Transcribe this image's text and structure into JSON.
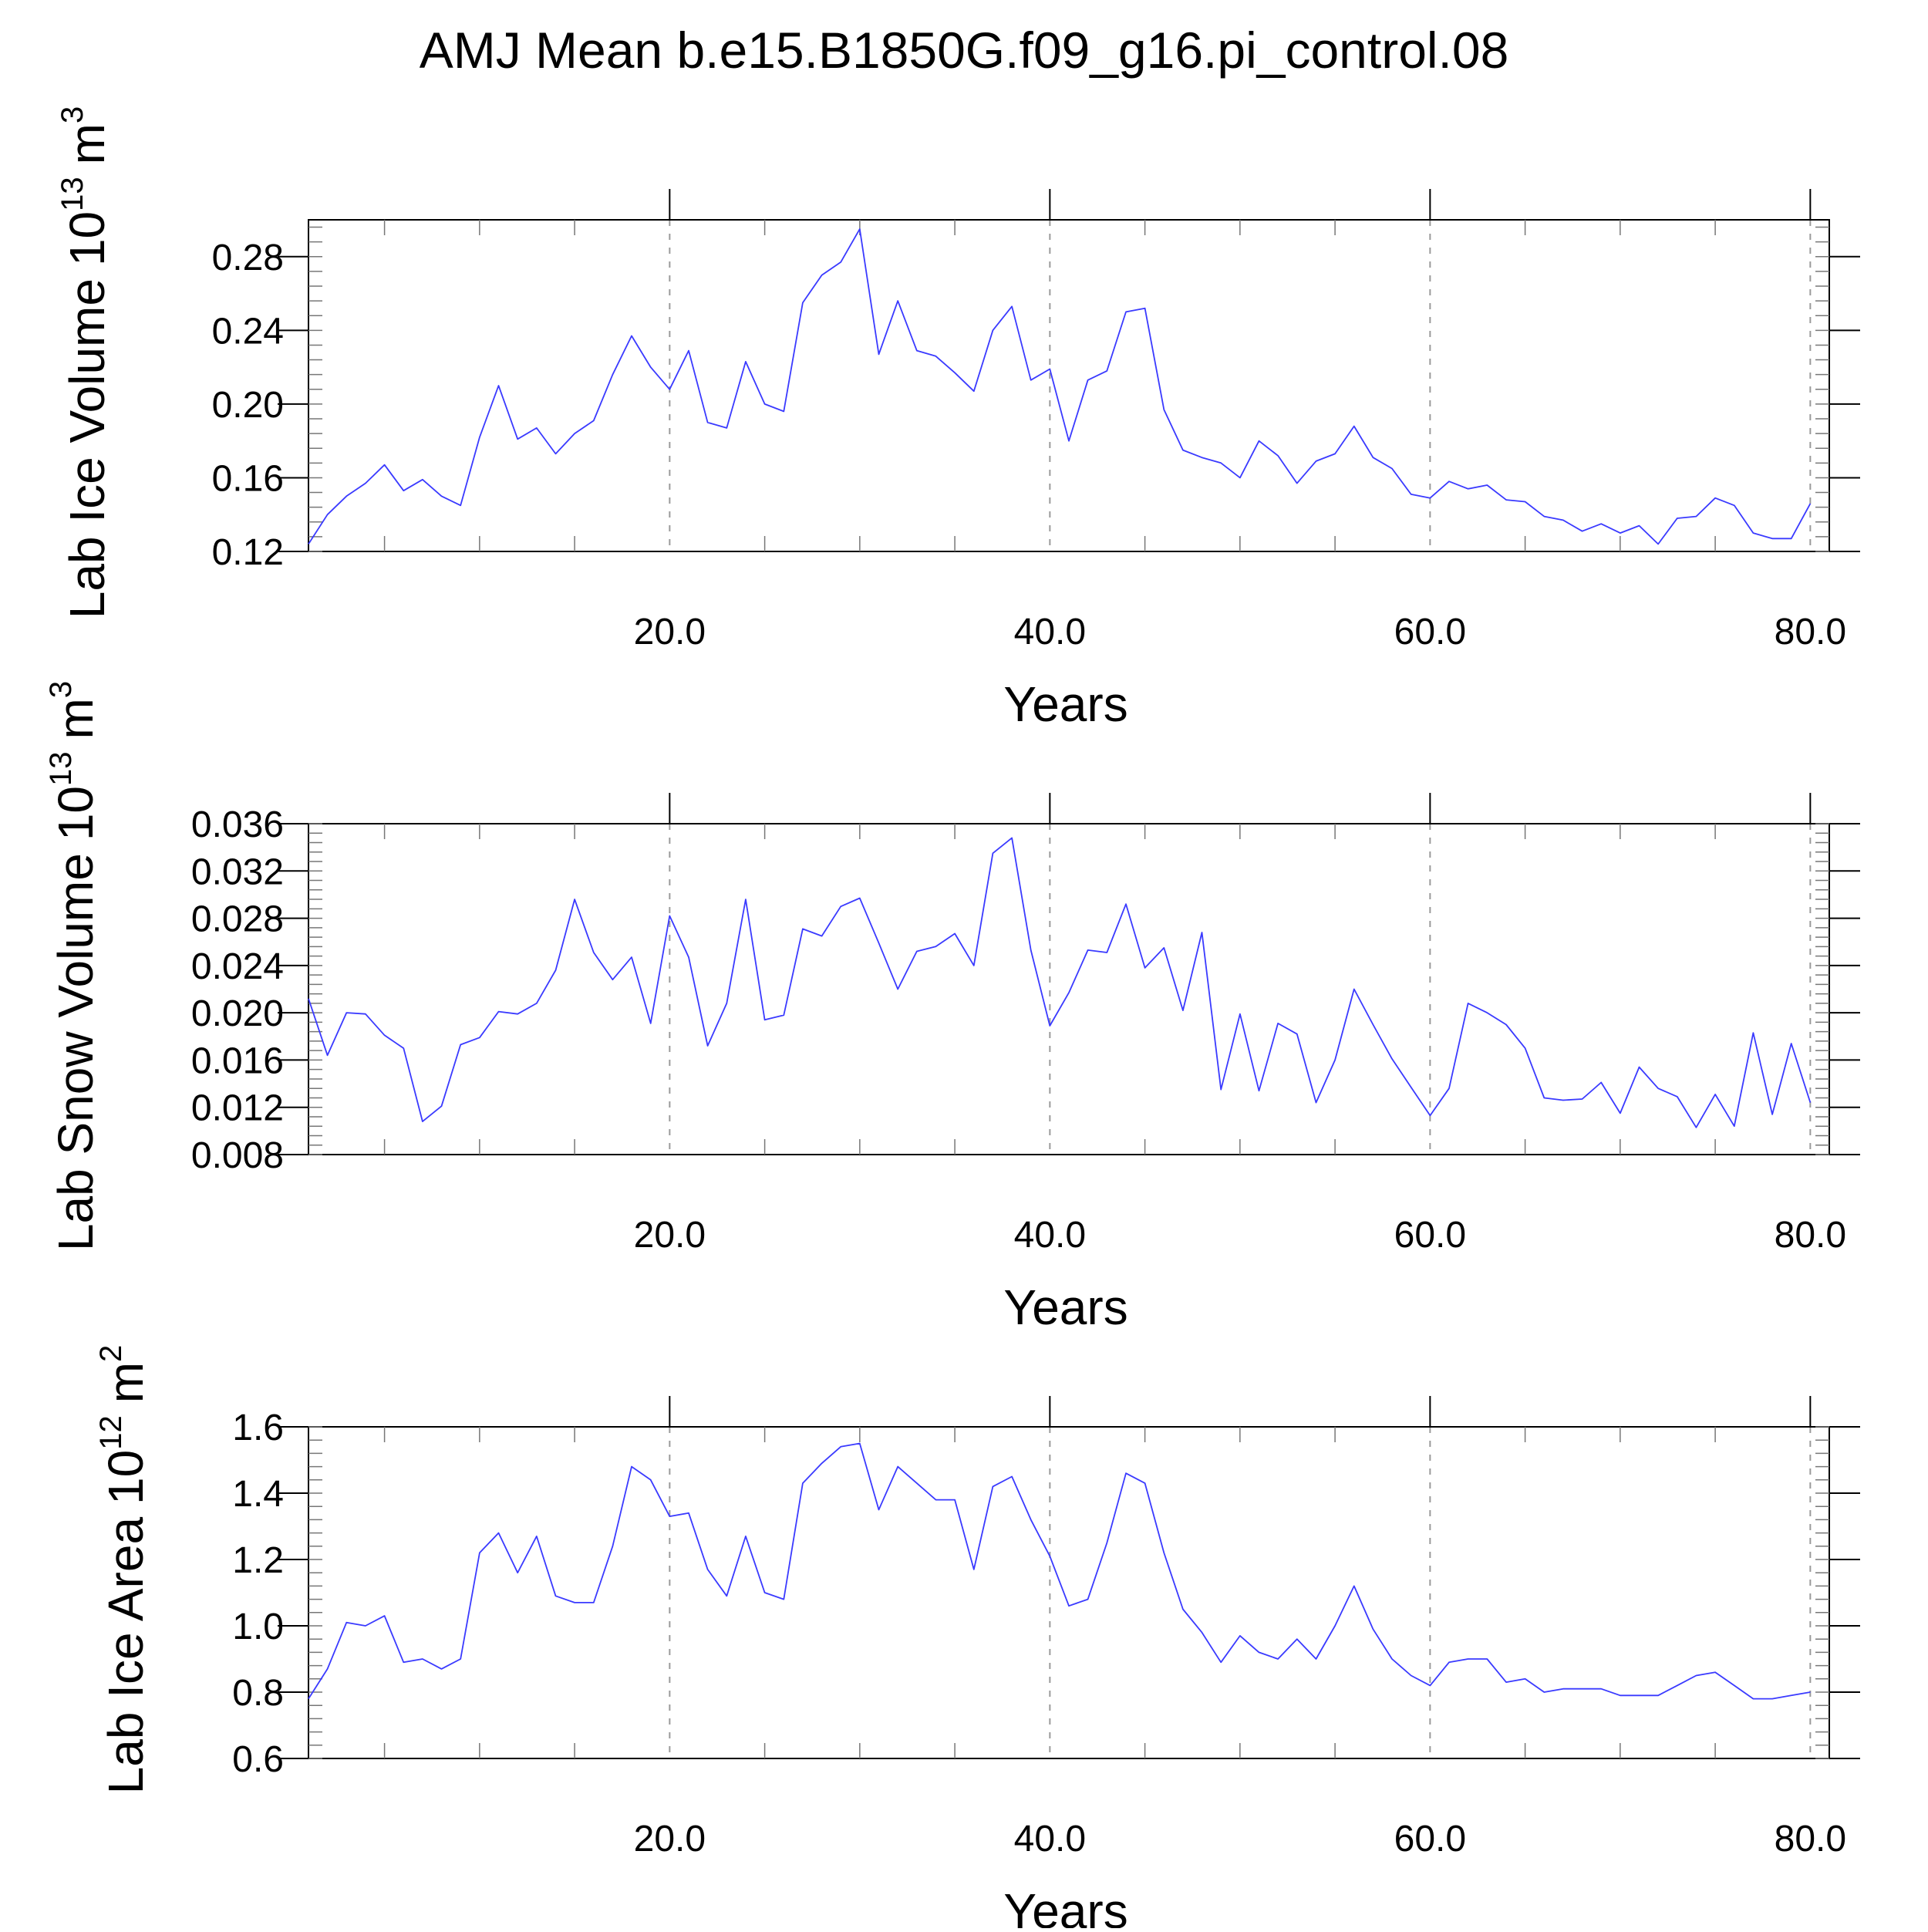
{
  "title": "AMJ Mean b.e15.B1850G.f09_g16.pi_control.08",
  "colors": {
    "line": "#3a3aff",
    "axis": "#000000",
    "grid": "#9a9a9a"
  },
  "chart_data": [
    {
      "type": "line",
      "ylabel": "Lab Ice Volume",
      "ylabel_unit_base": "10",
      "ylabel_unit_exp": "13",
      "ylabel_unit_suffix": "m",
      "ylabel_unit_suffix_exp": "3",
      "xlabel": "Years",
      "xlim": [
        1,
        81
      ],
      "ylim": [
        0.12,
        0.3
      ],
      "yticks": [
        0.12,
        0.16,
        0.2,
        0.24,
        0.28
      ],
      "ytick_labels": [
        "0.12",
        "0.16",
        "0.20",
        "0.24",
        "0.28"
      ],
      "xticks": [
        20,
        40,
        60,
        80
      ],
      "xtick_labels": [
        "20.0",
        "40.0",
        "60.0",
        "80.0"
      ],
      "grid": "vertical dashed at 20, 40, 60",
      "series": [
        {
          "x_start": 1,
          "values": [
            0.124,
            0.14,
            0.15,
            0.157,
            0.167,
            0.153,
            0.159,
            0.15,
            0.145,
            0.182,
            0.21,
            0.181,
            0.187,
            0.173,
            0.184,
            0.191,
            0.216,
            0.237,
            0.22,
            0.208,
            0.229,
            0.19,
            0.187,
            0.223,
            0.2,
            0.196,
            0.255,
            0.27,
            0.277,
            0.295,
            0.227,
            0.256,
            0.229,
            0.226,
            0.217,
            0.207,
            0.24,
            0.253,
            0.213,
            0.219,
            0.18,
            0.213,
            0.218,
            0.25,
            0.252,
            0.197,
            0.175,
            0.171,
            0.168,
            0.16,
            0.18,
            0.172,
            0.157,
            0.169,
            0.173,
            0.188,
            0.171,
            0.165,
            0.151,
            0.149,
            0.158,
            0.154,
            0.156,
            0.148,
            0.147,
            0.139,
            0.137,
            0.131,
            0.135,
            0.13,
            0.134,
            0.124,
            0.138,
            0.139,
            0.149,
            0.145,
            0.13,
            0.127,
            0.127,
            0.146
          ]
        }
      ]
    },
    {
      "type": "line",
      "ylabel": "Lab Snow Volume",
      "ylabel_unit_base": "10",
      "ylabel_unit_exp": "13",
      "ylabel_unit_suffix": "m",
      "ylabel_unit_suffix_exp": "3",
      "xlabel": "Years",
      "xlim": [
        1,
        81
      ],
      "ylim": [
        0.008,
        0.036
      ],
      "yticks": [
        0.008,
        0.012,
        0.016,
        0.02,
        0.024,
        0.028,
        0.032,
        0.036
      ],
      "ytick_labels": [
        "0.008",
        "0.012",
        "0.016",
        "0.020",
        "0.024",
        "0.028",
        "0.032",
        "0.036"
      ],
      "xticks": [
        20,
        40,
        60,
        80
      ],
      "xtick_labels": [
        "20.0",
        "40.0",
        "60.0",
        "80.0"
      ],
      "grid": "vertical dashed at 20, 40, 60",
      "series": [
        {
          "x_start": 1,
          "values": [
            0.0212,
            0.0164,
            0.02,
            0.0199,
            0.0181,
            0.017,
            0.0108,
            0.0121,
            0.0173,
            0.0179,
            0.0201,
            0.0199,
            0.0208,
            0.0236,
            0.0296,
            0.0251,
            0.0228,
            0.0247,
            0.0191,
            0.0282,
            0.0247,
            0.0172,
            0.0208,
            0.0296,
            0.0194,
            0.0198,
            0.0271,
            0.0265,
            0.029,
            0.0297,
            0.0259,
            0.022,
            0.0252,
            0.0256,
            0.0267,
            0.024,
            0.0335,
            0.0348,
            0.0253,
            0.0189,
            0.0217,
            0.0253,
            0.0251,
            0.0292,
            0.0238,
            0.0255,
            0.0202,
            0.0268,
            0.0135,
            0.0199,
            0.0134,
            0.0191,
            0.0182,
            0.0124,
            0.016,
            0.022,
            0.019,
            0.0161,
            0.0137,
            0.0113,
            0.0136,
            0.0208,
            0.02,
            0.019,
            0.017,
            0.0128,
            0.0126,
            0.0127,
            0.0141,
            0.0115,
            0.0154,
            0.0136,
            0.0129,
            0.0103,
            0.0131,
            0.0104,
            0.0183,
            0.0114,
            0.0174,
            0.0124
          ]
        }
      ]
    },
    {
      "type": "line",
      "ylabel": "Lab Ice Area",
      "ylabel_unit_base": "10",
      "ylabel_unit_exp": "12",
      "ylabel_unit_suffix": "m",
      "ylabel_unit_suffix_exp": "2",
      "xlabel": "Years",
      "xlim": [
        1,
        81
      ],
      "ylim": [
        0.6,
        1.6
      ],
      "yticks": [
        0.6,
        0.8,
        1.0,
        1.2,
        1.4,
        1.6
      ],
      "ytick_labels": [
        "0.6",
        "0.8",
        "1.0",
        "1.2",
        "1.4",
        "1.6"
      ],
      "xticks": [
        20,
        40,
        60,
        80
      ],
      "xtick_labels": [
        "20.0",
        "40.0",
        "60.0",
        "80.0"
      ],
      "grid": "vertical dashed at 20, 40, 60",
      "series": [
        {
          "x_start": 1,
          "values": [
            0.78,
            0.87,
            1.01,
            1.0,
            1.03,
            0.89,
            0.9,
            0.87,
            0.9,
            1.22,
            1.28,
            1.16,
            1.27,
            1.09,
            1.07,
            1.07,
            1.24,
            1.48,
            1.44,
            1.33,
            1.34,
            1.17,
            1.09,
            1.27,
            1.1,
            1.08,
            1.43,
            1.49,
            1.54,
            1.55,
            1.35,
            1.48,
            1.43,
            1.38,
            1.38,
            1.17,
            1.42,
            1.45,
            1.32,
            1.21,
            1.06,
            1.08,
            1.25,
            1.46,
            1.43,
            1.22,
            1.05,
            0.98,
            0.89,
            0.97,
            0.92,
            0.9,
            0.96,
            0.9,
            1.0,
            1.12,
            0.99,
            0.9,
            0.85,
            0.82,
            0.89,
            0.9,
            0.9,
            0.83,
            0.84,
            0.8,
            0.81,
            0.81,
            0.81,
            0.79,
            0.79,
            0.79,
            0.82,
            0.85,
            0.86,
            0.82,
            0.78,
            0.78,
            0.79,
            0.8
          ]
        }
      ]
    }
  ]
}
